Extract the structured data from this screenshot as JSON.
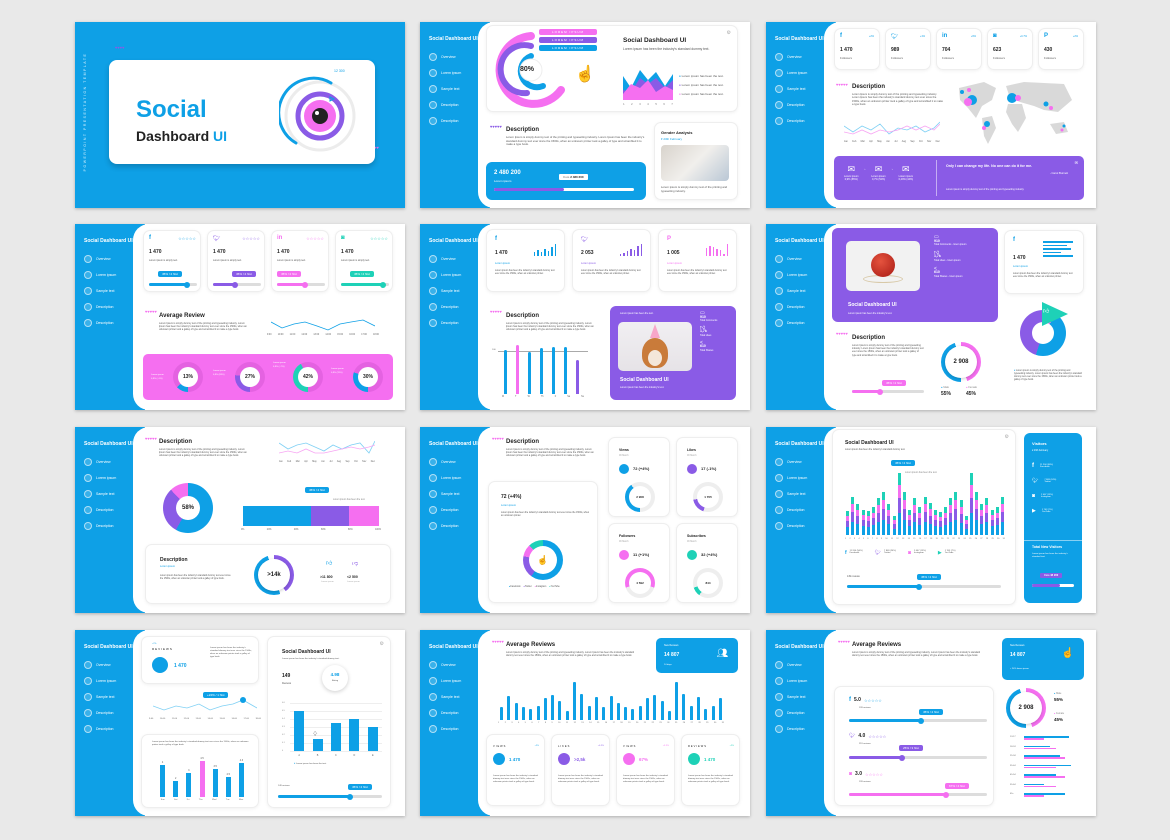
{
  "template": {
    "vertical_label": "POWERPOINT PRESENTATION TEMPLATE",
    "cover_title_1": "Social",
    "cover_title_2": "Dashboard",
    "cover_title_3": "UI",
    "cover_gauge_value": "12 300"
  },
  "sidebar": {
    "brand": "Social Dashboard UI",
    "items": [
      {
        "label": "Overview",
        "icon": "grid-icon"
      },
      {
        "label": "Lorem ipsum",
        "icon": "heart-icon"
      },
      {
        "label": "Sample text",
        "icon": "camera-icon"
      },
      {
        "label": "Description",
        "icon": "chat-icon"
      },
      {
        "label": "Description",
        "icon": "megaphone-icon"
      }
    ]
  },
  "colors": {
    "blue": "#0ea0e6",
    "purple": "#8a5be6",
    "pink": "#f56ff0",
    "teal": "#1ed1b7"
  },
  "common": {
    "lorem_short": "Lorem ipsum has been the industry's standard dummy text.",
    "lorem_long": "Lorem Ipsum is simply dummy text of the printing and typesetting industry. Lorem Ipsum has been the industry's standard dummy text ever since the 1500s, when an unknown printer took a galley of type and scrambled it to make a type book.",
    "lorem_ipsum": "Lorem ipsum",
    "description": "Description"
  },
  "slide2": {
    "ribbons": [
      "LOREM IPSUM",
      "LOREM IPSUM",
      "LOREM IPSUM"
    ],
    "donut_pct": "80%",
    "title": "Social Dashboard UI",
    "subtitle": "Lorem ipsum has been the industry's standard dummy text.",
    "area_x": [
      "1",
      "2",
      "3",
      "4",
      "5",
      "6",
      "7"
    ],
    "legend": [
      "Lorem ipsum has been the text.",
      "Lorem ipsum has been the text.",
      "Lorem ipsum has been the text."
    ],
    "stat_value": "2 480 200",
    "stat_label": "Lorem ipsum",
    "stat_tip_label": "Data",
    "stat_tip_value": "2 480 200",
    "gender_title": "Gender Analysis",
    "gender_date": "23th February",
    "gender_text": "Lorem ipsum is simply dummy text of the printing and typesetting industry."
  },
  "slide3": {
    "socials": [
      {
        "icon": "facebook-icon",
        "glyph": "f",
        "value": "1 470",
        "label": "Followers",
        "delta": "+2%"
      },
      {
        "icon": "twitter-icon",
        "glyph": "t",
        "value": "989",
        "label": "Followers",
        "delta": "+1%"
      },
      {
        "icon": "linkedin-icon",
        "glyph": "in",
        "value": "704",
        "label": "Followers",
        "delta": "+6%"
      },
      {
        "icon": "instagram-icon",
        "glyph": "◙",
        "value": "623",
        "label": "Followers",
        "delta": "+0.7%"
      },
      {
        "icon": "pinterest-icon",
        "glyph": "P",
        "value": "430",
        "label": "Followers",
        "delta": "+2%"
      }
    ],
    "months": [
      "Jan",
      "Feb",
      "Mar",
      "Apr",
      "May",
      "Jun",
      "Jul",
      "Aug",
      "Sep",
      "Oct",
      "Nov",
      "Dec"
    ],
    "funnel": [
      {
        "label": "Lorem ipsum",
        "value": "0,9% (65%)"
      },
      {
        "label": "Lorem ipsum",
        "value": "0,7% (52%)"
      },
      {
        "label": "Lorem ipsum",
        "value": "0,49% (44%)"
      }
    ],
    "quote": "Only I can change my life. No one can do it for me.",
    "quote_author": "- Carol Burnett",
    "quote_sub": "Lorem ipsum is simply dummy text of the printing and typesetting industry."
  },
  "slide4": {
    "cards": [
      {
        "icon": "facebook-icon",
        "value": "1 470",
        "text": "Lorem ipsum is simply text.",
        "tip": "45% / 2 hlst",
        "pct": 80
      },
      {
        "icon": "twitter-icon",
        "value": "1 470",
        "text": "Lorem ipsum is simply text.",
        "tip": "45% / 2 hlst",
        "pct": 45
      },
      {
        "icon": "linkedin-icon",
        "value": "1 470",
        "text": "Lorem ipsum is simply text.",
        "tip": "45% / 2 hlst",
        "pct": 55
      },
      {
        "icon": "instagram-icon",
        "value": "1 470",
        "text": "Lorem ipsum is simply text.",
        "tip": "45% / 2 hlst",
        "pct": 85
      }
    ],
    "title": "Average Review",
    "times": [
      "9:00",
      "10:00",
      "11:00",
      "12:00",
      "13:00",
      "14:00",
      "15:00",
      "16:00",
      "17:00",
      "18:00"
    ],
    "rings": [
      {
        "pct": "13%",
        "label": "Lorem ipsum",
        "sub": "0,9% (+1%)"
      },
      {
        "pct": "27%",
        "label": "Lorem ipsum",
        "sub": "0,9% (63%)"
      },
      {
        "pct": "42%",
        "label": "Lorem ipsum",
        "sub": "0,9% (+7%)"
      },
      {
        "pct": "30%",
        "label": "Lorem ipsum",
        "sub": "0,9% (31%)"
      }
    ]
  },
  "slide5": {
    "cards": [
      {
        "icon": "facebook-icon",
        "value": "1 470",
        "link": "Lorem ipsum"
      },
      {
        "icon": "twitter-icon",
        "value": "2 053",
        "link": "Lorem ipsum"
      },
      {
        "icon": "pinterest-icon",
        "value": "1 005",
        "link": "Lorem ipsum"
      }
    ],
    "card_text": "Lorem ipsum has been the industry's standard dummy text ever since the 1500s, when an unknown printer.",
    "days": [
      "M",
      "T",
      "W",
      "Th",
      "F",
      "Sa",
      "Su"
    ],
    "bar_ref": "100",
    "promo_caption": "Lorem ipsum has been the text.",
    "promo_title": "Social Dashboard UI",
    "promo_sub": "Lorem ipsum has been the industry's text.",
    "stats": [
      {
        "icon": "comment-icon",
        "value": "910",
        "label": "Total Comments"
      },
      {
        "icon": "like-icon",
        "value": "1,7k",
        "label": "Total Likes"
      },
      {
        "icon": "share-icon",
        "value": "610",
        "label": "Total Shares"
      }
    ]
  },
  "slide6": {
    "promo_title": "Social Dashboard UI",
    "promo_sub": "Lorem ipsum has been the industry's text.",
    "stats": [
      {
        "value": "910",
        "label": "Total Comments - lorem ipsum"
      },
      {
        "value": "1,7k",
        "label": "Total Likes - lorem ipsum"
      },
      {
        "value": "610",
        "label": "Total Shares - lorem ipsum"
      }
    ],
    "fb_value": "1 470",
    "fb_link": "Lorem ipsum",
    "fb_text": "Lorem ipsum has been the industry's standard dummy text ever since the 1500s, when an unknown printer.",
    "gauge_value": "2 908",
    "tip": "45% / 2 hlst",
    "male_label": "Male",
    "male_pct": "55%",
    "female_label": "Female",
    "female_pct": "45%",
    "donut_text": "Lorem ipsum is simply dummy text of the printing and typesetting industry. Lorem ipsum has been the industry's standard dummy text ever since the 1500s, when an unknown printer took a galley of type book."
  },
  "slide7": {
    "months": [
      "Jan",
      "Feb",
      "Mar",
      "Apr",
      "May",
      "Jun",
      "Jul",
      "Aug",
      "Sep",
      "Oct",
      "Nov",
      "Dec"
    ],
    "donut_pct": "58%",
    "tip": "45% / 2 hlst",
    "bar_caption": "Lorem ipsum has been the text.",
    "axis": [
      "0%",
      "20%",
      "40%",
      "60%",
      "80%",
      "100%"
    ],
    "stacked": [
      {
        "color": "blue",
        "pct": 50
      },
      {
        "color": "purple",
        "pct": 28
      },
      {
        "color": "pink",
        "pct": 22
      }
    ],
    "gauge": ">14k",
    "likes": ">11 800",
    "dislikes": "<2 500",
    "likes_label": "Lorem ipsum",
    "dislikes_label": "Lorem ipsum",
    "desc_text": "Lorem ipsum has been the industry's standard dummy text ever since the 1500s, when an unknown printer took a galley of type book."
  },
  "slide8": {
    "headline": "72 (+4%)",
    "headline_link": "Lorem ipsum",
    "headline_text": "Lorem ipsum has been the industry's standard dummy text ever since the 1500s, when an unknown printer.",
    "legend": [
      "Facebook",
      "Twitter",
      "Instagram",
      "YouTube"
    ],
    "tiles": [
      {
        "title": "Views",
        "date": "09 March",
        "value": "72 (+4%)",
        "ring": "2 908",
        "color": "blue"
      },
      {
        "title": "Likes",
        "date": "09 March",
        "value": "17 (-1%)",
        "ring": "1 705",
        "color": "purple"
      },
      {
        "title": "Followers",
        "date": "09 March",
        "value": "11 (+1%)",
        "ring": "4 592",
        "color": "pink"
      },
      {
        "title": "Subscribes",
        "date": "09 March",
        "value": "32 (+4%)",
        "ring": "844",
        "color": "teal"
      }
    ]
  },
  "slide9": {
    "title": "Social Dashboard UI",
    "subtitle": "Lorem ipsum has been the industry's standard dummy text.",
    "tip": "45% / 2 hlst",
    "tip_caption": "Lorem ipsum has been the text.",
    "legend": [
      {
        "icon": "facebook-icon",
        "value": "11 204 (56%)",
        "label": "Facebook"
      },
      {
        "icon": "twitter-icon",
        "value": "7 809 (24%)",
        "label": "Twitter"
      },
      {
        "icon": "instagram-icon",
        "value": "2 467 (13%)",
        "label": "Instagram"
      },
      {
        "icon": "youtube-icon",
        "value": "1 703 (7%)",
        "label": "YouTube"
      }
    ],
    "reviews": "149 reviews",
    "visitors_title": "Visitors",
    "visitors_date": "23th February",
    "total_title": "Total New Visitors",
    "total_text": "Lorem ipsum has been the industry's standard text.",
    "data_label": "Data",
    "data_value": "48 200"
  },
  "slide10": {
    "reviews_delta": "+2%",
    "reviews_label": "REVIEWS",
    "reviews_value": "1 470",
    "reviews_text": "Lorem ipsum has been the industry's standard dummy text ever since the 1500s, when an unknown printer took a galley of type book.",
    "tip": "+24% / 1 hlst",
    "times": [
      "9:00",
      "10:00",
      "11:00",
      "12:00",
      "13:00",
      "14:00",
      "15:00",
      "16:00",
      "17:00",
      "18:00"
    ],
    "bars_text": "Lorem ipsum has been the industry's standard dummy text ever since the 1500s, when an unknown printer took a galley of type book.",
    "title": "Social Dashboard UI",
    "subtitle": "Lorem ipsum has been the industry's standard dummy text.",
    "count": "149",
    "count_label": "Reviews",
    "rating": "4.98",
    "rating_label": "Rating",
    "legend": "Lorem ipsum has been the text.",
    "slider_label": "149 reviews",
    "slider_tip": "45% / 2 hlst"
  },
  "slide11": {
    "title": "Average Reviews",
    "kpi_label": "New Reviews",
    "kpi_value": "14 807",
    "kpi_sub": "14 days",
    "tiles": [
      {
        "title": "VIEWS",
        "delta": "+2%",
        "value": "1 470",
        "color": "blue"
      },
      {
        "title": "LIKES",
        "delta": "+0.2%",
        "value": ">2,5k",
        "color": "purple"
      },
      {
        "title": "VIEWS",
        "delta": "+3.2%",
        "value": "67%",
        "color": "pink"
      },
      {
        "title": "REVIEWS",
        "delta": "+2%",
        "value": "1 470",
        "color": "teal"
      }
    ],
    "tile_text": "Lorem ipsum has been the industry's standard dummy text ever since the 1500s, when an unknown printer took a galley of type book."
  },
  "slide12": {
    "title": "Average Reviews",
    "kpi_label": "New Reviews",
    "kpi_value": "14 807",
    "kpi_sub": "+ 24% lorem ipsum",
    "ratings": [
      {
        "icon": "facebook-icon",
        "score": "5.0",
        "reviews": "193 reviews",
        "tip": "45% / 2 hlst",
        "pct": 52,
        "color": "blue",
        "stars": 5
      },
      {
        "icon": "twitter-icon",
        "score": "4.0",
        "reviews": "219 reviews",
        "tip": "25% / 3 hlst",
        "pct": 38,
        "color": "purple",
        "stars": 4
      },
      {
        "icon": "instagram-icon",
        "score": "3.0",
        "reviews": "193 reviews",
        "tip": "67% / 4 hlst",
        "pct": 70,
        "color": "pink",
        "stars": 3
      }
    ],
    "gauge_value": "2 908",
    "male_label": "Male",
    "male_pct": "55%",
    "female_label": "Female",
    "female_pct": "45%",
    "ages": [
      {
        "label": "13-17",
        "m": 100,
        "f": 45
      },
      {
        "label": "18-24",
        "m": 57,
        "f": 70
      },
      {
        "label": "25-34",
        "m": 80,
        "f": 92
      },
      {
        "label": "35-44",
        "m": 105,
        "f": 70
      },
      {
        "label": "45-54",
        "m": 70,
        "f": 92
      },
      {
        "label": "55-64",
        "m": 45,
        "f": 70
      },
      {
        "label": "65+",
        "m": 92,
        "f": 45
      }
    ]
  },
  "chart_data": [
    {
      "type": "bar",
      "title": "Weekly bars (slide 5)",
      "categories": [
        "M",
        "T",
        "W",
        "Th",
        "F",
        "Sa",
        "Su"
      ],
      "values": [
        95,
        105,
        90,
        98,
        100,
        100,
        75
      ],
      "ylim": [
        0,
        110
      ],
      "reference_line": 100
    },
    {
      "type": "bar",
      "title": "Average Reviews daily (slide 11)",
      "categories": [
        "1",
        "2",
        "3",
        "4",
        "5",
        "6",
        "7",
        "8",
        "9",
        "10",
        "11",
        "12",
        "13",
        "14",
        "15",
        "16",
        "17",
        "18",
        "19",
        "20",
        "21",
        "22",
        "23",
        "24",
        "25",
        "26",
        "27",
        "28",
        "29",
        "30",
        "31"
      ],
      "values": [
        35,
        62,
        45,
        33,
        30,
        38,
        57,
        67,
        50,
        23,
        100,
        68,
        37,
        60,
        35,
        62,
        45,
        33,
        30,
        38,
        57,
        67,
        50,
        23,
        100,
        68,
        37,
        60,
        30,
        38,
        57
      ]
    },
    {
      "type": "bar",
      "title": "Reviews by day (slide 10)",
      "categories": [
        "Sun",
        "Sat",
        "Fri",
        "Thu",
        "Wed",
        "Tue",
        "Mon"
      ],
      "values": [
        4,
        2,
        3,
        4.5,
        3.5,
        2.5,
        4.3
      ]
    },
    {
      "type": "bar",
      "title": "Social Dashboard UI (slide 10)",
      "categories": [
        "A",
        "B",
        "C",
        "D",
        "E"
      ],
      "values": [
        0.5,
        0.15,
        0.35,
        0.4,
        0.3
      ],
      "ylim": [
        0,
        0.6
      ],
      "yticks": [
        0,
        0.1,
        0.2,
        0.3,
        0.4,
        0.5,
        0.6
      ]
    },
    {
      "type": "bar",
      "title": "Stacked visitors by day (slide 9)",
      "categories": [
        "1",
        "2",
        "3",
        "4",
        "5",
        "6",
        "7",
        "8",
        "9",
        "10",
        "11",
        "12",
        "13",
        "14",
        "15",
        "16",
        "17",
        "18",
        "19",
        "20",
        "21",
        "22",
        "23",
        "24",
        "25",
        "26",
        "27",
        "28",
        "29",
        "30",
        "31"
      ],
      "series": [
        {
          "name": "Facebook",
          "color": "#0ea0e6"
        },
        {
          "name": "Twitter",
          "color": "#8a5be6"
        },
        {
          "name": "Instagram",
          "color": "#f56ff0"
        },
        {
          "name": "YouTube",
          "color": "#1ed1b7"
        }
      ],
      "totals": [
        38,
        62,
        50,
        40,
        38,
        45,
        60,
        70,
        50,
        30,
        100,
        70,
        40,
        60,
        45,
        62,
        52,
        40,
        37,
        45,
        60,
        70,
        56,
        30,
        100,
        70,
        50,
        60,
        40,
        45,
        62
      ]
    },
    {
      "type": "bar",
      "title": "Stacked share (slide 7)",
      "orientation": "horizontal",
      "categories": [
        "share"
      ],
      "series": [
        {
          "name": "blue",
          "values": [
            50
          ]
        },
        {
          "name": "purple",
          "values": [
            28
          ]
        },
        {
          "name": "pink",
          "values": [
            22
          ]
        }
      ],
      "xticks": [
        "0%",
        "20%",
        "40%",
        "60%",
        "80%",
        "100%"
      ]
    },
    {
      "type": "bar",
      "title": "Age groups (slide 12)",
      "orientation": "horizontal",
      "categories": [
        "13-17",
        "18-24",
        "25-34",
        "35-44",
        "45-54",
        "55-64",
        "65+"
      ],
      "series": [
        {
          "name": "Male",
          "values": [
            100,
            57,
            80,
            105,
            70,
            45,
            92
          ]
        },
        {
          "name": "Female",
          "values": [
            45,
            70,
            92,
            70,
            92,
            70,
            45
          ]
        }
      ]
    },
    {
      "type": "pie",
      "title": "Slide 7 donut",
      "labels": [
        "blue",
        "purple",
        "pink"
      ],
      "values": [
        58,
        30,
        12
      ]
    },
    {
      "type": "pie",
      "title": "Slide 8 donut",
      "labels": [
        "Facebook",
        "Twitter",
        "Instagram",
        "YouTube"
      ],
      "values": [
        60,
        20,
        10,
        10
      ]
    },
    {
      "type": "area",
      "title": "Slide 2 area",
      "x": [
        1,
        2,
        3,
        4,
        5,
        6,
        7
      ],
      "series": [
        {
          "name": "blue"
        },
        {
          "name": "purple"
        },
        {
          "name": "pink"
        }
      ]
    },
    {
      "type": "line",
      "title": "Monthly lines (slides 3, 7)",
      "x": [
        "Jan",
        "Feb",
        "Mar",
        "Apr",
        "May",
        "Jun",
        "Jul",
        "Aug",
        "Sep",
        "Oct",
        "Nov",
        "Dec"
      ],
      "series": [
        {
          "name": "blue"
        },
        {
          "name": "pink"
        }
      ]
    },
    {
      "type": "line",
      "title": "Hourly line (slides 4, 10)",
      "x": [
        "9:00",
        "10:00",
        "11:00",
        "12:00",
        "13:00",
        "14:00",
        "15:00",
        "16:00",
        "17:00",
        "18:00"
      ]
    }
  ]
}
